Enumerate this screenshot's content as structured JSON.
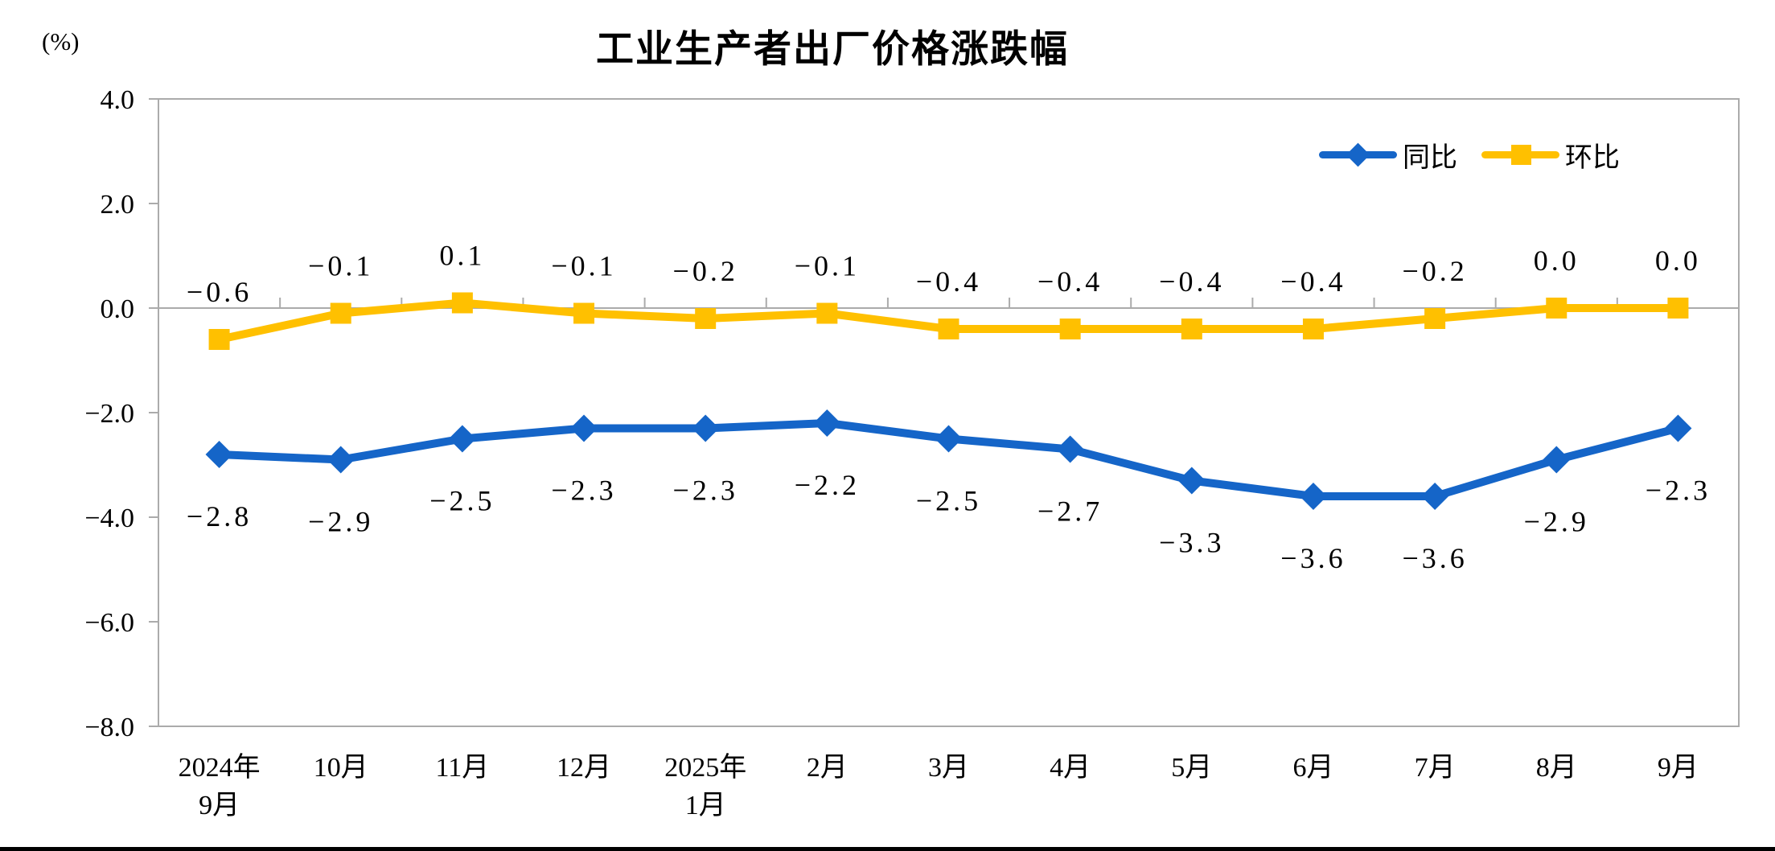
{
  "chart_data": {
    "type": "line",
    "title": "工业生产者出厂价格涨跌幅",
    "unit_label": "(%)",
    "categories": [
      [
        "2024年",
        "9月"
      ],
      [
        "10月"
      ],
      [
        "11月"
      ],
      [
        "12月"
      ],
      [
        "2025年",
        "1月"
      ],
      [
        "2月"
      ],
      [
        "3月"
      ],
      [
        "4月"
      ],
      [
        "5月"
      ],
      [
        "6月"
      ],
      [
        "7月"
      ],
      [
        "8月"
      ],
      [
        "9月"
      ]
    ],
    "series": [
      {
        "name": "同比",
        "color": "#1565C8",
        "marker": "diamond",
        "values": [
          -2.8,
          -2.9,
          -2.5,
          -2.3,
          -2.3,
          -2.2,
          -2.5,
          -2.7,
          -3.3,
          -3.6,
          -3.6,
          -2.9,
          -2.3
        ]
      },
      {
        "name": "环比",
        "color": "#FFC000",
        "marker": "square",
        "values": [
          -0.6,
          -0.1,
          0.1,
          -0.1,
          -0.2,
          -0.1,
          -0.4,
          -0.4,
          -0.4,
          -0.4,
          -0.2,
          0.0,
          0.0
        ]
      }
    ],
    "y_axis": {
      "min": -8.0,
      "max": 4.0,
      "step": 2.0,
      "tick_labels": [
        "4.0",
        "2.0",
        "0.0",
        "-2.0",
        "-4.0",
        "-6.0",
        "-8.0"
      ]
    },
    "axis_color": "#ABABAB",
    "text_color": "#000000",
    "grid": false,
    "legend_position": "top-right-inside",
    "data_labels": "shown"
  }
}
